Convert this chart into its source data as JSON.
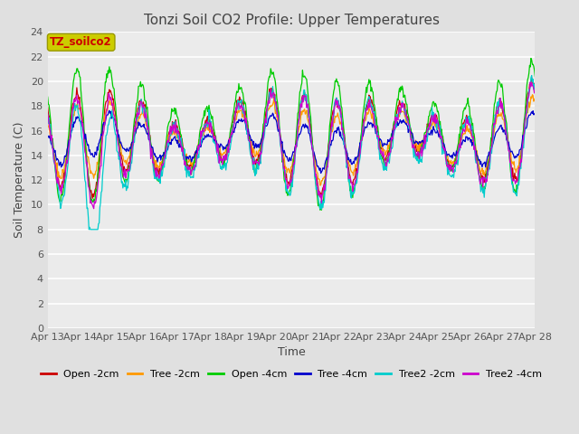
{
  "title": "Tonzi Soil CO2 Profile: Upper Temperatures",
  "xlabel": "Time",
  "ylabel": "Soil Temperature (C)",
  "legend_label": "TZ_soilco2",
  "ylim": [
    0,
    24
  ],
  "yticks": [
    0,
    2,
    4,
    6,
    8,
    10,
    12,
    14,
    16,
    18,
    20,
    22,
    24
  ],
  "x_labels": [
    "Apr 13",
    "Apr 14",
    "Apr 15",
    "Apr 16",
    "Apr 17",
    "Apr 18",
    "Apr 19",
    "Apr 20",
    "Apr 21",
    "Apr 22",
    "Apr 23",
    "Apr 24",
    "Apr 25",
    "Apr 26",
    "Apr 27",
    "Apr 28"
  ],
  "series": [
    {
      "label": "Open -2cm",
      "color": "#cc0000"
    },
    {
      "label": "Tree -2cm",
      "color": "#ff9900"
    },
    {
      "label": "Open -4cm",
      "color": "#00cc00"
    },
    {
      "label": "Tree -4cm",
      "color": "#0000cc"
    },
    {
      "label": "Tree2 -2cm",
      "color": "#00cccc"
    },
    {
      "label": "Tree2 -4cm",
      "color": "#cc00cc"
    }
  ],
  "background_color": "#e0e0e0",
  "plot_bg_color": "#ebebeb",
  "grid_color": "#ffffff",
  "title_fontsize": 11,
  "axis_fontsize": 9,
  "tick_fontsize": 8,
  "legend_box_facecolor": "#cccc00",
  "legend_box_edgecolor": "#999900",
  "legend_text_color": "#cc0000",
  "figsize": [
    6.4,
    4.8
  ],
  "dpi": 100
}
